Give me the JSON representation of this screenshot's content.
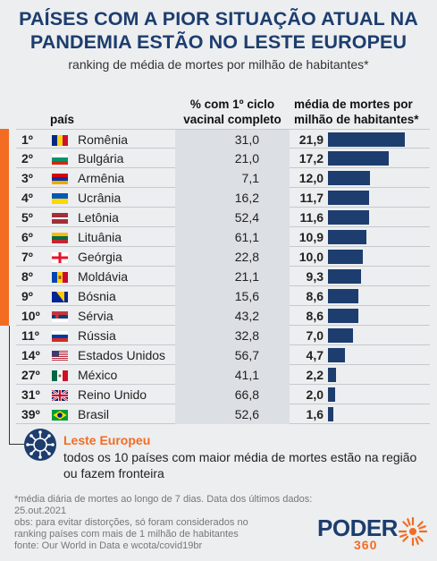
{
  "title_line1": "PAÍSES COM A PIOR SITUAÇÃO ATUAL NA",
  "title_line2": "PANDEMIA ESTÃO NO LESTE EUROPEU",
  "subtitle": "ranking de média de mortes por milhão de habitantes*",
  "headers": {
    "country": "país",
    "vac_line1": "% com 1º ciclo",
    "vac_line2": "vacinal completo",
    "deaths_line1": "média de mortes por",
    "deaths_line2": "milhão de habitantes*"
  },
  "chart_data": {
    "type": "table",
    "max_value": 21.9,
    "rows": [
      {
        "rank": "1º",
        "country": "Romênia",
        "flag": "romania",
        "vac": "31,0",
        "deaths_label": "21,9",
        "deaths": 21.9
      },
      {
        "rank": "2º",
        "country": "Bulgária",
        "flag": "bulgaria",
        "vac": "21,0",
        "deaths_label": "17,2",
        "deaths": 17.2
      },
      {
        "rank": "3º",
        "country": "Armênia",
        "flag": "armenia",
        "vac": "7,1",
        "deaths_label": "12,0",
        "deaths": 12.0
      },
      {
        "rank": "4º",
        "country": "Ucrânia",
        "flag": "ukraine",
        "vac": "16,2",
        "deaths_label": "11,7",
        "deaths": 11.7
      },
      {
        "rank": "5º",
        "country": "Letônia",
        "flag": "latvia",
        "vac": "52,4",
        "deaths_label": "11,6",
        "deaths": 11.6
      },
      {
        "rank": "6º",
        "country": "Lituânia",
        "flag": "lithuania",
        "vac": "61,1",
        "deaths_label": "10,9",
        "deaths": 10.9
      },
      {
        "rank": "7º",
        "country": "Geórgia",
        "flag": "georgia",
        "vac": "22,8",
        "deaths_label": "10,0",
        "deaths": 10.0
      },
      {
        "rank": "8º",
        "country": "Moldávia",
        "flag": "moldova",
        "vac": "21,1",
        "deaths_label": "9,3",
        "deaths": 9.3
      },
      {
        "rank": "9º",
        "country": "Bósnia",
        "flag": "bosnia",
        "vac": "15,6",
        "deaths_label": "8,6",
        "deaths": 8.6
      },
      {
        "rank": "10º",
        "country": "Sérvia",
        "flag": "serbia",
        "vac": "43,2",
        "deaths_label": "8,6",
        "deaths": 8.6
      },
      {
        "rank": "11º",
        "country": "Rússia",
        "flag": "russia",
        "vac": "32,8",
        "deaths_label": "7,0",
        "deaths": 7.0
      },
      {
        "rank": "14º",
        "country": "Estados Unidos",
        "flag": "usa",
        "vac": "56,7",
        "deaths_label": "4,7",
        "deaths": 4.7
      },
      {
        "rank": "27º",
        "country": "México",
        "flag": "mexico",
        "vac": "41,1",
        "deaths_label": "2,2",
        "deaths": 2.2
      },
      {
        "rank": "31º",
        "country": "Reino Unido",
        "flag": "uk",
        "vac": "66,8",
        "deaths_label": "2,0",
        "deaths": 2.0
      },
      {
        "rank": "39º",
        "country": "Brasil",
        "flag": "brazil",
        "vac": "52,6",
        "deaths_label": "1,6",
        "deaths": 1.6
      }
    ],
    "highlight_count": 10
  },
  "colors": {
    "navy": "#1d3d6e",
    "orange": "#f26c22"
  },
  "note": {
    "title": "Leste Europeu",
    "text": "todos os 10 países com maior média de mortes estão na região ou fazem fronteira"
  },
  "footnotes": [
    "*média diária de mortes ao longo de 7 dias. Data dos últimos dados: 25.out.2021",
    "obs: para evitar distorções, só foram considerados no",
    "ranking países com mais de 1 milhão de habitantes",
    "fonte: Our World in Data e wcota/covid19br"
  ],
  "logo": {
    "word": "PODER",
    "number": "360"
  }
}
